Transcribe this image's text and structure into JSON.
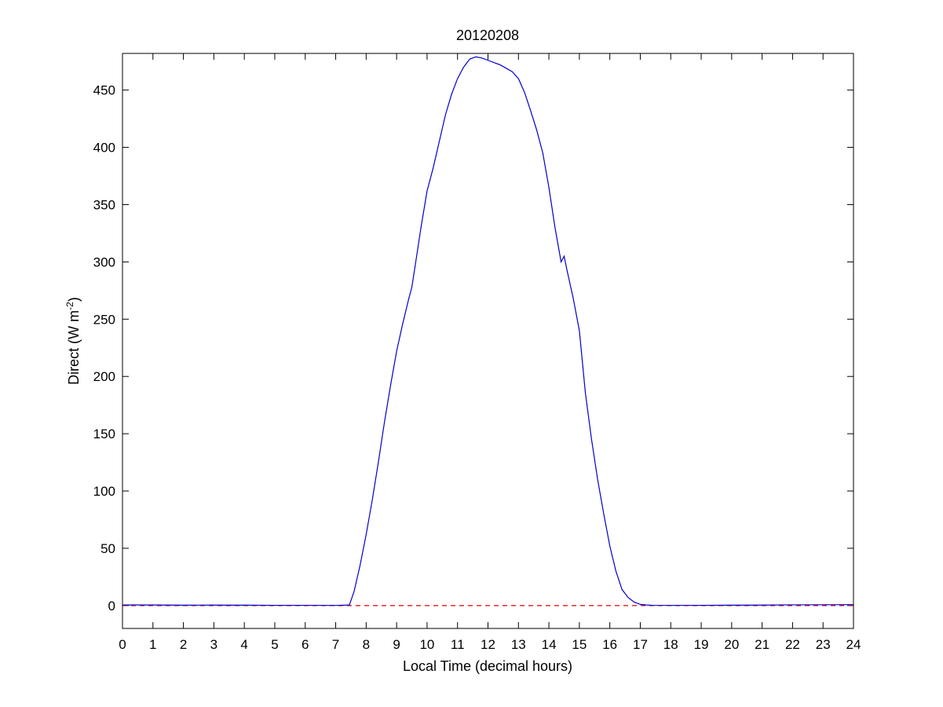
{
  "chart_data": {
    "type": "line",
    "title": "20120208",
    "xlabel": "Local Time (decimal hours)",
    "ylabel": "Direct (W m",
    "ylabel_superscript": "-2",
    "ylabel_suffix": ")",
    "xlim": [
      0,
      24
    ],
    "ylim": [
      -20,
      482
    ],
    "xticks": [
      0,
      1,
      2,
      3,
      4,
      5,
      6,
      7,
      8,
      9,
      10,
      11,
      12,
      13,
      14,
      15,
      16,
      17,
      18,
      19,
      20,
      21,
      22,
      23,
      24
    ],
    "yticks": [
      0,
      50,
      100,
      150,
      200,
      250,
      300,
      350,
      400,
      450
    ],
    "grid": false,
    "legend": "none",
    "series": [
      {
        "color": "#0000cc",
        "style": "solid",
        "x": [
          0,
          1,
          2,
          3,
          4,
          5,
          6,
          7,
          7.45,
          7.6,
          7.8,
          8.0,
          8.2,
          8.4,
          8.6,
          8.8,
          9.0,
          9.2,
          9.4,
          9.5,
          9.6,
          9.8,
          10.0,
          10.2,
          10.4,
          10.6,
          10.8,
          11.0,
          11.2,
          11.4,
          11.6,
          11.8,
          12.0,
          12.2,
          12.4,
          12.6,
          12.8,
          13.0,
          13.2,
          13.4,
          13.6,
          13.8,
          14.0,
          14.2,
          14.4,
          14.5,
          14.6,
          14.8,
          15.0,
          15.2,
          15.4,
          15.6,
          15.8,
          16.0,
          16.2,
          16.4,
          16.6,
          16.8,
          17.0,
          17.2,
          17.4,
          18,
          19,
          20,
          21,
          22,
          23,
          24
        ],
        "y": [
          0.5,
          0.5,
          0.3,
          0.4,
          0.3,
          0.2,
          0.2,
          0.1,
          0.5,
          12,
          35,
          62,
          92,
          125,
          160,
          192,
          222,
          246,
          268,
          278,
          295,
          330,
          362,
          382,
          405,
          428,
          446,
          460,
          470,
          477,
          479,
          478,
          476,
          474,
          472,
          469,
          466,
          460,
          448,
          432,
          415,
          395,
          365,
          330,
          300,
          305,
          292,
          268,
          240,
          185,
          145,
          110,
          80,
          52,
          30,
          14,
          7,
          3,
          1,
          0.5,
          0.2,
          0.1,
          0.2,
          0.3,
          0.4,
          0.6,
          0.7,
          0.8
        ]
      },
      {
        "color": "#dd0000",
        "style": "dashed",
        "x": [
          0,
          24
        ],
        "y": [
          0,
          0
        ]
      }
    ]
  }
}
